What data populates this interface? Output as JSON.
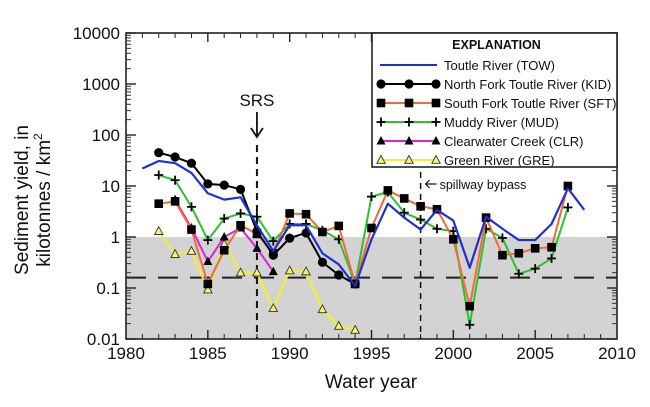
{
  "chart_data": {
    "type": "line",
    "title": "",
    "xlabel": "Water year",
    "ylabel_line1": "Sediment yield, in",
    "ylabel_line2": "kilotonnes / km",
    "ylabel_sup": "2",
    "y_scale": "log",
    "xlim": [
      1980,
      2010
    ],
    "ylim": [
      0.01,
      10000
    ],
    "x_ticks": [
      1980,
      1985,
      1990,
      1995,
      2000,
      2005,
      2010
    ],
    "x_tick_labels": [
      "1980",
      "1985",
      "1990",
      "1995",
      "2000",
      "2005",
      "2010"
    ],
    "y_ticks": [
      0.01,
      0.1,
      1,
      10,
      100,
      1000,
      10000
    ],
    "y_tick_labels": [
      "0.01",
      "0.1",
      "1",
      "10",
      "100",
      "1000",
      "10000"
    ],
    "shaded_band": {
      "from": 0.01,
      "to": 1,
      "color": "#d3d3d3"
    },
    "reference_line": {
      "y": 0.16,
      "style": "long-dash"
    },
    "annotations": [
      {
        "label": "SRS",
        "x": 1988,
        "type": "vertical-dashed-arrow"
      },
      {
        "label": "spillway bypass",
        "x": 1998,
        "type": "vertical-dashed-left-arrow"
      }
    ],
    "legend": {
      "title": "EXPLANATION",
      "placement": "top-right"
    },
    "series": [
      {
        "name": "Toutle River (TOW)",
        "color": "#1f2fd0",
        "marker": "none",
        "x": [
          1981,
          1982,
          1983,
          1984,
          1985,
          1986,
          1987,
          1988,
          1989,
          1990,
          1991,
          1992,
          1993,
          1994,
          1995,
          1996,
          1997,
          1998,
          1999,
          2000,
          2001,
          2002,
          2003,
          2004,
          2005,
          2006,
          2007,
          2008
        ],
        "y": [
          22,
          31,
          28,
          18,
          7.2,
          5.4,
          6,
          1.7,
          0.53,
          1.7,
          1.7,
          0.48,
          0.29,
          0.11,
          0.9,
          4.5,
          2.4,
          1.4,
          3.4,
          2.1,
          0.25,
          2.5,
          1.45,
          0.87,
          0.87,
          1.8,
          9,
          3.4
        ]
      },
      {
        "name": "North Fork Toutle River (KID)",
        "color": "#000000",
        "marker": "circle",
        "x": [
          1982,
          1983,
          1984,
          1985,
          1986,
          1987,
          1988,
          1989,
          1990,
          1991,
          1992,
          1993,
          1994
        ],
        "y": [
          45,
          37,
          28,
          11,
          10.4,
          8.6,
          1.3,
          0.44,
          0.95,
          1.2,
          0.32,
          0.18,
          0.12
        ]
      },
      {
        "name": "South Fork Toutle River (SFT)",
        "color": "#f06a3a",
        "marker": "square",
        "x": [
          1982,
          1983,
          1984,
          1985,
          1986,
          1987,
          1988,
          1989,
          1990,
          1991,
          1992,
          1993,
          1994,
          1995,
          1996,
          1997,
          1998,
          1999,
          2000,
          2001,
          2002,
          2003,
          2004,
          2005,
          2006,
          2007
        ],
        "y": [
          4.5,
          5,
          1.4,
          0.12,
          0.55,
          1.7,
          1.15,
          0.48,
          2.9,
          2.8,
          1.25,
          1.65,
          0.12,
          1.5,
          8.2,
          5.7,
          4,
          3.5,
          0.9,
          0.044,
          2.4,
          0.44,
          0.48,
          0.6,
          0.63,
          10
        ]
      },
      {
        "name": "Muddy River (MUD)",
        "color": "#2ec02e",
        "marker": "plus",
        "x": [
          1982,
          1983,
          1984,
          1985,
          1986,
          1987,
          1988,
          1989,
          1990,
          1991,
          1992,
          1993,
          1994,
          1995,
          1996,
          1997,
          1998,
          1999,
          2000,
          2001,
          2002,
          2003,
          2004,
          2005,
          2006,
          2007
        ],
        "y": [
          16.4,
          13,
          3.9,
          0.87,
          2.3,
          2.9,
          2.5,
          0.83,
          1.8,
          1.8,
          1.35,
          0.9,
          0.12,
          6.2,
          7.6,
          3,
          2.2,
          1.45,
          1.3,
          0.019,
          1.45,
          0.96,
          0.19,
          0.24,
          0.38,
          3.8
        ]
      },
      {
        "name": "Clearwater Creek (CLR)",
        "color": "#e020e0",
        "marker": "triangle",
        "x": [
          1983,
          1984,
          1985,
          1986,
          1987,
          1988,
          1989
        ],
        "y": [
          5.4,
          1.5,
          0.33,
          1.0,
          1.5,
          0.6,
          0.21
        ]
      },
      {
        "name": "Green River (GRE)",
        "color": "#f2f22a",
        "marker": "triangle-open",
        "x": [
          1982,
          1983,
          1984,
          1985,
          1986,
          1987,
          1988,
          1989,
          1990,
          1991,
          1992,
          1993,
          1994
        ],
        "y": [
          1.3,
          0.46,
          0.53,
          0.093,
          0.72,
          0.2,
          0.2,
          0.04,
          0.22,
          0.21,
          0.038,
          0.018,
          0.015
        ]
      }
    ]
  }
}
